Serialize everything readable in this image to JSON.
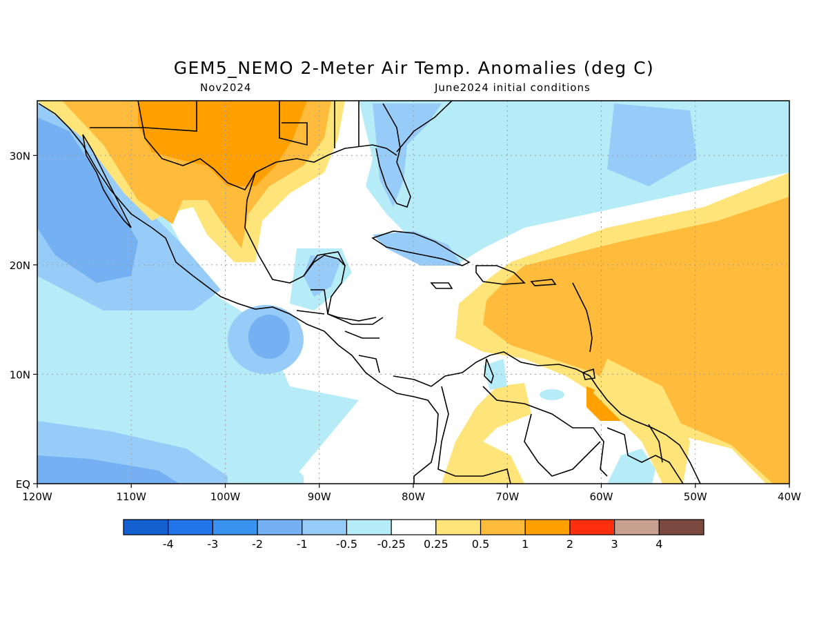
{
  "title": "GEM5_NEMO 2-Meter Air Temp. Anomalies (deg C)",
  "subtitle_left": "Nov2024",
  "subtitle_right": "June2024 initial conditions",
  "map": {
    "lon_range": [
      -120,
      -40
    ],
    "lat_range": [
      0,
      35
    ],
    "lon_ticks": [
      {
        "value": -120,
        "label": "120W"
      },
      {
        "value": -110,
        "label": "110W"
      },
      {
        "value": -100,
        "label": "100W"
      },
      {
        "value": -90,
        "label": "90W"
      },
      {
        "value": -80,
        "label": "80W"
      },
      {
        "value": -70,
        "label": "70W"
      },
      {
        "value": -60,
        "label": "60W"
      },
      {
        "value": -50,
        "label": "50W"
      },
      {
        "value": -40,
        "label": "40W"
      }
    ],
    "lat_ticks": [
      {
        "value": 0,
        "label": "EQ"
      },
      {
        "value": 10,
        "label": "10N"
      },
      {
        "value": 20,
        "label": "20N"
      },
      {
        "value": 30,
        "label": "30N"
      }
    ],
    "grid": true
  },
  "colorbar": {
    "colors": [
      "#1560d0",
      "#2175e8",
      "#3a92f0",
      "#74b0f2",
      "#98ccf8",
      "#b6ecf8",
      "#ffffff",
      "#ffe47a",
      "#ffbb3c",
      "#ffa000",
      "#ff3010",
      "#c8a090",
      "#7a4a40"
    ],
    "labels": [
      "-4",
      "-3",
      "-2",
      "-1",
      "-0.5",
      "-0.25",
      "0.25",
      "0.5",
      "1",
      "2",
      "3",
      "4"
    ]
  },
  "palette": {
    "coast": "#000000",
    "grid": "#9a9a9a"
  }
}
